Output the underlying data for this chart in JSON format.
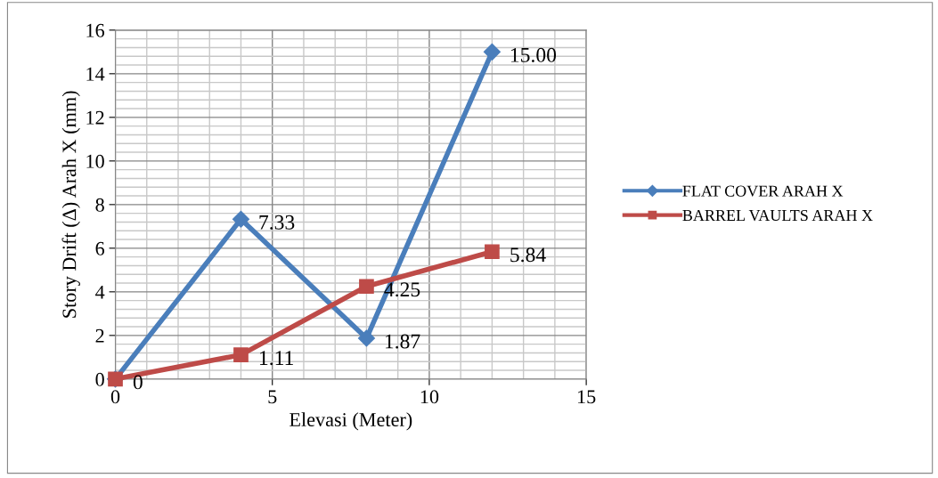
{
  "chart_data": {
    "type": "line",
    "xlabel": "Elevasi (Meter)",
    "ylabel": "Story Drift (Δ) Arah X (mm)",
    "x": [
      0,
      4,
      8,
      12
    ],
    "series": [
      {
        "name": "FLAT COVER ARAH X",
        "color": "#4a7ebb",
        "marker": "diamond",
        "values": [
          0,
          7.33,
          1.87,
          15.0
        ],
        "value_labels": [
          null,
          "7.33",
          "1.87",
          "15.00"
        ]
      },
      {
        "name": "BARREL VAULTS ARAH X",
        "color": "#be4b48",
        "marker": "square",
        "values": [
          0,
          1.11,
          4.25,
          5.84
        ],
        "value_labels": [
          "0",
          "1.11",
          "4.25",
          "5.84"
        ]
      }
    ],
    "xlim": [
      0,
      15
    ],
    "xticks": [
      0,
      5,
      10,
      15
    ],
    "ylim": [
      0,
      16
    ],
    "yticks": [
      0,
      2,
      4,
      6,
      8,
      10,
      12,
      14,
      16
    ],
    "grid": true,
    "legend": "right",
    "line_style": "solid"
  }
}
